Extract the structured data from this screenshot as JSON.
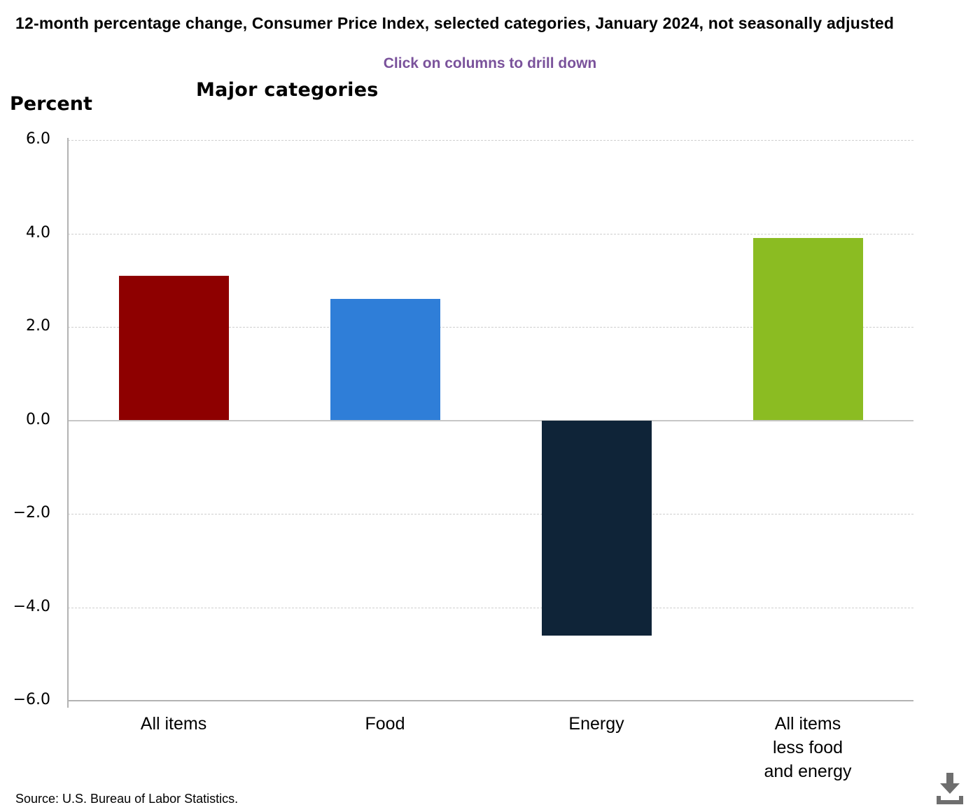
{
  "page": {
    "title": "12-month percentage change, Consumer Price Index, selected categories, January 2024, not seasonally adjusted",
    "interaction_hint": "Click on columns to drill down",
    "axis_unit_label": "Percent",
    "source_note": "Source: U.S. Bureau of Labor Statistics."
  },
  "chart_data": {
    "type": "bar",
    "title": "Major categories",
    "ylabel": "Percent",
    "xlabel": "",
    "categories": [
      "All items",
      "Food",
      "Energy",
      "All items less food and energy"
    ],
    "categories_display": [
      "All items",
      "Food",
      "Energy",
      "All items\nless food\nand energy"
    ],
    "values": [
      3.1,
      2.6,
      -4.6,
      3.9
    ],
    "bar_colors": [
      "#8e0000",
      "#2f7ed8",
      "#0f2438",
      "#8bbc22"
    ],
    "ylim": [
      -6.0,
      6.0
    ],
    "ytick_values": [
      6,
      4,
      2,
      0,
      -2,
      -4,
      -6
    ],
    "ytick_labels": [
      "6.0",
      "4.0",
      "2.0",
      "0.0",
      "−2.0",
      "−4.0",
      "−6.0"
    ],
    "grid": "dashed-horizontal",
    "legend": "none",
    "period": "January 2024"
  },
  "icons": {
    "download": "download-icon"
  },
  "theme": {
    "hint_color": "#7a529b",
    "axis_color": "#b3b3b3",
    "gridline_color": "#cfcfcf",
    "zero_line_color": "#c6c6c6",
    "icon_color": "#6e6e6e",
    "text_color": "#000000",
    "background": "#ffffff"
  }
}
